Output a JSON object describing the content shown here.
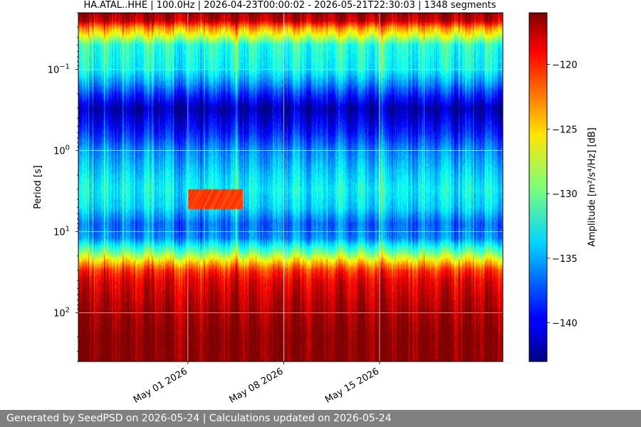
{
  "footer": {
    "text": "Generated by SeedPSD on 2026-05-24 | Calculations updated on 2026-05-24"
  },
  "colors": {
    "footer_bg": "#808080",
    "grid": "#ffffff",
    "colormap": "jet"
  },
  "chart_data": {
    "type": "heatmap",
    "title": "HA.ATAL..HHE | 100.0Hz | 2026-04-23T00:00:02 - 2026-05-21T22:30:03 | 1348 segments",
    "xlabel": "",
    "ylabel": "Period [s]",
    "y_scale": "log",
    "y_inverted": true,
    "ylim": [
      0.02,
      400
    ],
    "yticks": [
      {
        "value": 0.1,
        "label": "10",
        "exp": "−1"
      },
      {
        "value": 1,
        "label": "10",
        "exp": "0"
      },
      {
        "value": 10,
        "label": "10",
        "exp": "1"
      },
      {
        "value": 100,
        "label": "10",
        "exp": "2"
      }
    ],
    "xlim": [
      "2026-04-23",
      "2026-05-24"
    ],
    "xticks": [
      {
        "value": "2026-05-01",
        "label": "May 01 2026"
      },
      {
        "value": "2026-05-08",
        "label": "May 08 2026"
      },
      {
        "value": "2026-05-15",
        "label": "May 15 2026"
      }
    ],
    "grid": true,
    "colorbar": {
      "label": "Amplitude [m²/s⁴/Hz] [dB]",
      "range": [
        -143,
        -116
      ],
      "ticks": [
        {
          "value": -120,
          "label": "−120"
        },
        {
          "value": -125,
          "label": "−125"
        },
        {
          "value": -130,
          "label": "−130"
        },
        {
          "value": -135,
          "label": "−135"
        },
        {
          "value": -140,
          "label": "−140"
        }
      ]
    },
    "profile": {
      "period_s": [
        0.02,
        0.025,
        0.03,
        0.05,
        0.1,
        0.15,
        0.3,
        0.6,
        1,
        2,
        3,
        5,
        8,
        12,
        18,
        25,
        30,
        40,
        60,
        100,
        200,
        400
      ],
      "amplitude_db": [
        -117,
        -118,
        -123,
        -132,
        -133,
        -136,
        -142,
        -139,
        -136,
        -134,
        -133,
        -134,
        -137,
        -136,
        -130,
        -124,
        -121,
        -119,
        -118,
        -117,
        -116,
        -116
      ]
    },
    "event": {
      "start": "2026-05-01",
      "end": "2026-05-05",
      "period_s": 4,
      "amplitude_db": -121
    }
  }
}
